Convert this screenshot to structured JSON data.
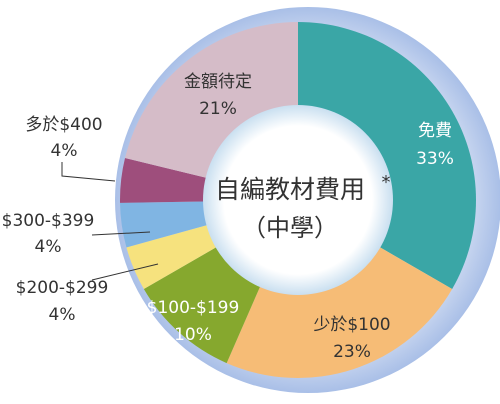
{
  "chart_data": {
    "type": "pie",
    "donut": true,
    "title": "自編教材費用",
    "title_mark": "*",
    "subtitle": "（中學）",
    "categories": [
      "免費",
      "少於$100",
      "$100-$199",
      "$200-$299",
      "$300-$399",
      "多於$400",
      "金額待定"
    ],
    "values": [
      33,
      23,
      10,
      4,
      4,
      4,
      21
    ],
    "labels": [
      "33%",
      "23%",
      "10%",
      "4%",
      "4%",
      "4%",
      "21%"
    ],
    "colors": [
      "#3aa6a6",
      "#f6bc76",
      "#86a82e",
      "#f6e27e",
      "#80b5e3",
      "#9e4e7c",
      "#d5bcc8"
    ],
    "label_colors": [
      "#ffffff",
      "#333333",
      "#ffffff",
      "#333333",
      "#333333",
      "#333333",
      "#333333"
    ],
    "ring_color": "#c4d3ef"
  }
}
